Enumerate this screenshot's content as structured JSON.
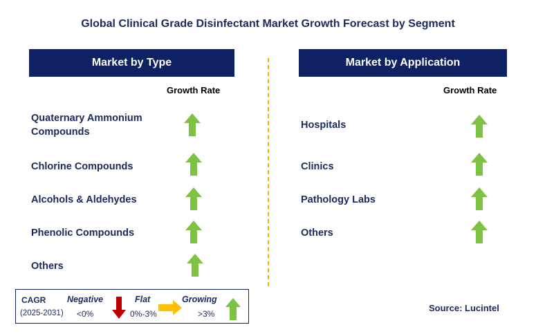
{
  "title": "Global Clinical Grade Disinfectant Market Growth Forecast by Segment",
  "left_panel": {
    "header": "Market by Type",
    "growth_rate_label": "Growth Rate",
    "items": [
      {
        "label": "Quaternary Ammonium Compounds",
        "trend": "growing"
      },
      {
        "label": "Chlorine Compounds",
        "trend": "growing"
      },
      {
        "label": "Alcohols & Aldehydes",
        "trend": "growing"
      },
      {
        "label": "Phenolic Compounds",
        "trend": "growing"
      },
      {
        "label": "Others",
        "trend": "growing"
      }
    ]
  },
  "right_panel": {
    "header": "Market by Application",
    "growth_rate_label": "Growth Rate",
    "items": [
      {
        "label": "Hospitals",
        "trend": "growing"
      },
      {
        "label": "Clinics",
        "trend": "growing"
      },
      {
        "label": "Pathology Labs",
        "trend": "growing"
      },
      {
        "label": "Others",
        "trend": "growing"
      }
    ]
  },
  "legend": {
    "cagr": "CAGR",
    "period": "(2025-2031)",
    "negative_label": "Negative",
    "negative_range": "<0%",
    "flat_label": "Flat",
    "flat_range": "0%-3%",
    "growing_label": "Growing",
    "growing_range": ">3%"
  },
  "source": "Source: Lucintel",
  "colors": {
    "header_bg": "#0e2163",
    "text_navy": "#1a2a5e",
    "arrow_green": "#7dc242",
    "arrow_red": "#c00000",
    "arrow_yellow": "#ffc000",
    "divider": "#f0b400"
  }
}
